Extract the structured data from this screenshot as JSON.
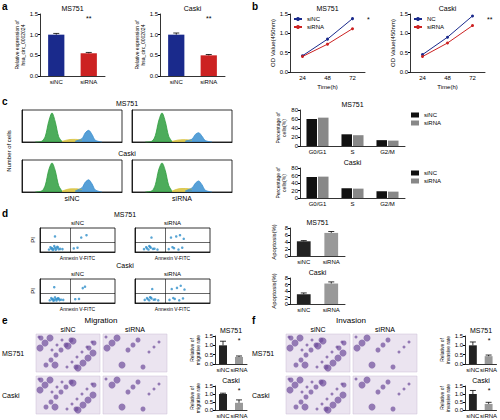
{
  "panels": [
    {
      "label": "a"
    },
    {
      "label": "b"
    },
    {
      "label": "c",
      "rows": [
        "MS751",
        "Caski"
      ],
      "ylabel": "Number of cells"
    },
    {
      "label": "d",
      "rows": [
        "MS751",
        "Caski"
      ]
    },
    {
      "label": "e",
      "title": "Migration",
      "columns": [
        "siNC",
        "siRNA"
      ],
      "rows": [
        "MS751",
        "Caski"
      ]
    },
    {
      "label": "f",
      "title": "Invasion",
      "columns": [
        "siNC",
        "siRNA"
      ],
      "rows": [
        "MS751",
        "Caski"
      ]
    }
  ],
  "chart_data": [
    {
      "type": "bar",
      "title": "MS751",
      "categories": [
        "siNC",
        "siRNA"
      ],
      "values": [
        1.0,
        0.55
      ],
      "errors": [
        0.03,
        0.02
      ],
      "colors": [
        "#1a2a8c",
        "#cc2222"
      ],
      "ylabel": "Relative expression of\nhsa_circ_0002024",
      "ylim": [
        0,
        1.5
      ],
      "yticks": [
        {
          "value": 0,
          "label": "0.0"
        },
        0.5,
        {
          "value": 1,
          "label": "1.0"
        },
        1.5
      ],
      "annotation": "**"
    },
    {
      "type": "bar",
      "title": "Caski",
      "categories": [
        "siNC",
        "siRNA"
      ],
      "values": [
        1.0,
        0.5
      ],
      "errors": [
        0.04,
        0.02
      ],
      "colors": [
        "#1a2a8c",
        "#cc2222"
      ],
      "ylabel": "Relative expression of\nhsa_circ_0002024",
      "ylim": [
        0,
        1.5
      ],
      "yticks": [
        {
          "value": 0,
          "label": "0.0"
        },
        0.5,
        {
          "value": 1,
          "label": "1.0"
        },
        1.5
      ],
      "annotation": "**"
    },
    {
      "type": "line",
      "title": "MS751",
      "categories": [
        "24",
        "48",
        "72"
      ],
      "xlabel": "Time(h)",
      "ylabel": "OD Value(450nm)",
      "series": [
        {
          "name": "siNC",
          "color": "#1a2a8c",
          "values": [
            0.42,
            0.85,
            1.38
          ]
        },
        {
          "name": "siRNA",
          "color": "#cc2222",
          "values": [
            0.4,
            0.72,
            1.12
          ]
        }
      ],
      "ylim": [
        0,
        1.5
      ],
      "yticks": [
        {
          "value": 0,
          "label": "0.0"
        },
        0.5,
        {
          "value": 1,
          "label": "1.0"
        },
        1.5
      ],
      "legend": "upper left",
      "annotation": "*"
    },
    {
      "type": "line",
      "title": "Caski",
      "categories": [
        "24",
        "48",
        "72"
      ],
      "xlabel": "Time(h)",
      "ylabel": "OD Value(450nm)",
      "series": [
        {
          "name": "NC",
          "color": "#1a2a8c",
          "values": [
            0.45,
            0.9,
            1.45
          ]
        },
        {
          "name": "siRNA",
          "color": "#cc2222",
          "values": [
            0.4,
            0.75,
            1.2
          ]
        }
      ],
      "ylim": [
        0,
        1.5
      ],
      "yticks": [
        {
          "value": 0,
          "label": "0.0"
        },
        0.5,
        {
          "value": 1,
          "label": "1.0"
        },
        1.5
      ],
      "legend": "upper left",
      "annotation": "**"
    },
    {
      "type": "area",
      "x": [
        20,
        30,
        35,
        40,
        45,
        50,
        55,
        60,
        70,
        80,
        90,
        95,
        100,
        105,
        110,
        120
      ],
      "xlim": [
        0,
        150
      ],
      "ylim": [
        0,
        110
      ],
      "tick_labels": false,
      "series": [
        {
          "color": "#2e9e3e",
          "values": [
            0,
            3,
            20,
            70,
            100,
            68,
            18,
            2,
            null,
            null,
            null,
            null,
            null,
            null,
            null,
            null
          ]
        },
        {
          "color": "#d8c23a",
          "values": [
            null,
            null,
            null,
            null,
            null,
            null,
            null,
            2,
            8,
            9,
            7,
            null,
            null,
            null,
            null,
            null
          ]
        },
        {
          "color": "#3a8fd0",
          "values": [
            null,
            null,
            null,
            null,
            null,
            null,
            null,
            null,
            null,
            3,
            12,
            32,
            40,
            26,
            6,
            0
          ]
        }
      ]
    },
    {
      "type": "area",
      "x": [
        20,
        30,
        35,
        40,
        45,
        50,
        55,
        60,
        70,
        80,
        90,
        95,
        100,
        105,
        110,
        120
      ],
      "xlim": [
        0,
        150
      ],
      "ylim": [
        0,
        110
      ],
      "tick_labels": false,
      "series": [
        {
          "color": "#2e9e3e",
          "values": [
            0,
            3,
            22,
            72,
            100,
            70,
            20,
            2,
            null,
            null,
            null,
            null,
            null,
            null,
            null,
            null
          ]
        },
        {
          "color": "#d8c23a",
          "values": [
            null,
            null,
            null,
            null,
            null,
            null,
            null,
            2,
            7,
            8,
            6,
            null,
            null,
            null,
            null,
            null
          ]
        },
        {
          "color": "#3a8fd0",
          "values": [
            null,
            null,
            null,
            null,
            null,
            null,
            null,
            null,
            null,
            3,
            10,
            26,
            32,
            20,
            5,
            0
          ]
        }
      ]
    },
    {
      "type": "area",
      "title": "siNC",
      "x": [
        20,
        30,
        35,
        40,
        45,
        50,
        55,
        60,
        70,
        80,
        90,
        95,
        100,
        105,
        110,
        120
      ],
      "xlim": [
        0,
        150
      ],
      "ylim": [
        0,
        110
      ],
      "tick_labels": false,
      "series": [
        {
          "color": "#2e9e3e",
          "values": [
            0,
            4,
            24,
            75,
            100,
            72,
            22,
            3,
            null,
            null,
            null,
            null,
            null,
            null,
            null,
            null
          ]
        },
        {
          "color": "#d8c23a",
          "values": [
            null,
            null,
            null,
            null,
            null,
            null,
            null,
            3,
            10,
            11,
            9,
            null,
            null,
            null,
            null,
            null
          ]
        },
        {
          "color": "#3a8fd0",
          "values": [
            null,
            null,
            null,
            null,
            null,
            null,
            null,
            null,
            null,
            4,
            15,
            34,
            42,
            28,
            7,
            0
          ]
        }
      ]
    },
    {
      "type": "area",
      "title": "siRNA",
      "x": [
        20,
        30,
        35,
        40,
        45,
        50,
        55,
        60,
        70,
        80,
        90,
        95,
        100,
        105,
        110,
        120
      ],
      "xlim": [
        0,
        150
      ],
      "ylim": [
        0,
        110
      ],
      "tick_labels": false,
      "series": [
        {
          "color": "#2e9e3e",
          "values": [
            0,
            4,
            25,
            76,
            100,
            73,
            23,
            3,
            null,
            null,
            null,
            null,
            null,
            null,
            null,
            null
          ]
        },
        {
          "color": "#d8c23a",
          "values": [
            null,
            null,
            null,
            null,
            null,
            null,
            null,
            3,
            11,
            12,
            10,
            null,
            null,
            null,
            null,
            null
          ]
        },
        {
          "color": "#3a8fd0",
          "values": [
            null,
            null,
            null,
            null,
            null,
            null,
            null,
            null,
            null,
            4,
            14,
            30,
            38,
            25,
            6,
            0
          ]
        }
      ]
    },
    {
      "type": "bar",
      "title": "MS751",
      "categories": [
        "G0/G1",
        "S",
        "G2/M"
      ],
      "series": [
        {
          "name": "siNC",
          "color": "#111111",
          "values": [
            60,
            26,
            13
          ]
        },
        {
          "name": "siRNA",
          "color": "#888888",
          "values": [
            63,
            24,
            12
          ]
        }
      ],
      "ylabel": "Percentage of\ncells(%)",
      "ylim": [
        0,
        80
      ],
      "yticks": [
        0,
        20,
        40,
        60,
        80
      ],
      "legend": "right"
    },
    {
      "type": "bar",
      "title": "Caski",
      "categories": [
        "G0/G1",
        "S",
        "G2/M"
      ],
      "series": [
        {
          "name": "siNC",
          "color": "#111111",
          "values": [
            56,
            26,
            18
          ]
        },
        {
          "name": "siRNA",
          "color": "#888888",
          "values": [
            57,
            25,
            17
          ]
        }
      ],
      "ylabel": "Percentage of\ncells(%)",
      "ylim": [
        0,
        80
      ],
      "yticks": [
        0,
        20,
        40,
        60,
        80
      ],
      "legend": "right"
    },
    {
      "type": "scatter",
      "title": "siNC",
      "xlabel": "Annexin V-FITC",
      "ylabel": "PI",
      "color": "#2f8fc9",
      "x": [
        12,
        15,
        18,
        20,
        22,
        25,
        14,
        17,
        23,
        27,
        19,
        21,
        16,
        24,
        30,
        45,
        55,
        62,
        20,
        50
      ],
      "values": [
        10,
        14,
        12,
        18,
        15,
        11,
        20,
        8,
        22,
        13,
        25,
        9,
        16,
        19,
        12,
        15,
        60,
        70,
        65,
        18
      ],
      "xlim": [
        0,
        100
      ],
      "ylim": [
        0,
        100
      ],
      "gate_x": 40,
      "gate_y": 40,
      "tick_labels": false
    },
    {
      "type": "scatter",
      "title": "siRNA",
      "xlabel": "Annexin V-FITC",
      "color": "#2f8fc9",
      "x": [
        12,
        16,
        18,
        21,
        24,
        15,
        20,
        26,
        19,
        45,
        52,
        58,
        63,
        48,
        55,
        60,
        22,
        50,
        65,
        30
      ],
      "values": [
        12,
        15,
        10,
        18,
        13,
        20,
        22,
        14,
        25,
        12,
        16,
        10,
        18,
        60,
        65,
        70,
        60,
        20,
        55,
        10
      ],
      "xlim": [
        0,
        100
      ],
      "ylim": [
        0,
        100
      ],
      "gate_x": 40,
      "gate_y": 40,
      "tick_labels": false
    },
    {
      "type": "scatter",
      "title": "siNC",
      "xlabel": "Annexin V-FITC",
      "ylabel": "PI",
      "color": "#2f8fc9",
      "x": [
        13,
        16,
        19,
        21,
        23,
        26,
        15,
        18,
        24,
        28,
        20,
        22,
        17,
        25,
        31,
        47,
        57,
        60,
        19,
        52
      ],
      "values": [
        11,
        15,
        13,
        17,
        16,
        12,
        21,
        9,
        20,
        14,
        24,
        10,
        17,
        18,
        13,
        16,
        62,
        68,
        66,
        17
      ],
      "xlim": [
        0,
        100
      ],
      "ylim": [
        0,
        100
      ],
      "gate_x": 40,
      "gate_y": 40,
      "tick_labels": false
    },
    {
      "type": "scatter",
      "title": "siRNA",
      "xlabel": "Annexin V-FITC",
      "color": "#2f8fc9",
      "x": [
        13,
        17,
        19,
        22,
        25,
        16,
        21,
        27,
        20,
        46,
        53,
        59,
        64,
        49,
        56,
        61,
        23,
        51,
        66,
        31
      ],
      "values": [
        13,
        16,
        11,
        19,
        14,
        21,
        23,
        15,
        24,
        13,
        17,
        11,
        19,
        58,
        63,
        72,
        58,
        21,
        56,
        11
      ],
      "xlim": [
        0,
        100
      ],
      "ylim": [
        0,
        100
      ],
      "gate_x": 40,
      "gate_y": 40,
      "tick_labels": false
    },
    {
      "type": "bar",
      "title": "MS751",
      "categories": [
        "siNC",
        "siRNA"
      ],
      "values": [
        4.2,
        6.6
      ],
      "errors": [
        0.2,
        0.4
      ],
      "colors": [
        "#222222",
        "#999999"
      ],
      "ylabel": "Apoptosis(%)",
      "ylim": [
        0,
        8
      ],
      "yticks": [
        0,
        2,
        4,
        6,
        8
      ]
    },
    {
      "type": "bar",
      "title": "Caski",
      "categories": [
        "siNC",
        "siRNA"
      ],
      "values": [
        3.0,
        6.3
      ],
      "errors": [
        0.4,
        0.5
      ],
      "colors": [
        "#222222",
        "#999999"
      ],
      "ylabel": "Apoptosis(%)",
      "ylim": [
        0,
        8
      ],
      "yticks": [
        0,
        2,
        4,
        6,
        8
      ]
    },
    {
      "type": "bar",
      "title": "MS751",
      "categories": [
        "siNC",
        "siRNA"
      ],
      "values": [
        1.0,
        0.38
      ],
      "errors": [
        0.22,
        0.05
      ],
      "colors": [
        "#222222",
        "#999999"
      ],
      "ylabel": "Relative of\nmigrative rate",
      "ylim": [
        0,
        1.5
      ],
      "yticks": [
        {
          "value": 0,
          "label": "0.0"
        },
        0.5,
        {
          "value": 1,
          "label": "1.0"
        },
        1.5
      ],
      "annotation": "*"
    },
    {
      "type": "bar",
      "title": "Caski",
      "categories": [
        "siNC",
        "siRNA"
      ],
      "values": [
        1.0,
        0.45
      ],
      "errors": [
        0.05,
        0.18
      ],
      "colors": [
        "#222222",
        "#999999"
      ],
      "ylabel": "Relative of\nmigrative rate",
      "ylim": [
        0,
        1.5
      ],
      "yticks": [
        {
          "value": 0,
          "label": "0.0"
        },
        0.5,
        {
          "value": 1,
          "label": "1.0"
        },
        1.5
      ],
      "annotation": "*"
    },
    {
      "type": "bar",
      "title": "MS751",
      "categories": [
        "siNC",
        "siRNA"
      ],
      "values": [
        1.0,
        0.42
      ],
      "errors": [
        0.18,
        0.06
      ],
      "colors": [
        "#222222",
        "#999999"
      ],
      "ylabel": "Relative of\ninvasive rate",
      "ylim": [
        0,
        1.5
      ],
      "yticks": [
        {
          "value": 0,
          "label": "0.0"
        },
        0.5,
        {
          "value": 1,
          "label": "1.0"
        },
        1.5
      ],
      "annotation": "*"
    },
    {
      "type": "bar",
      "title": "Caski",
      "categories": [
        "siNC",
        "siRNA"
      ],
      "values": [
        1.0,
        0.38
      ],
      "errors": [
        0.22,
        0.1
      ],
      "colors": [
        "#222222",
        "#999999"
      ],
      "ylabel": "Relative of\ninvasive rate",
      "ylim": [
        0,
        1.5
      ],
      "yticks": [
        {
          "value": 0,
          "label": "0.0"
        },
        0.5,
        {
          "value": 1,
          "label": "1.0"
        },
        1.5
      ],
      "annotation": "*"
    }
  ]
}
